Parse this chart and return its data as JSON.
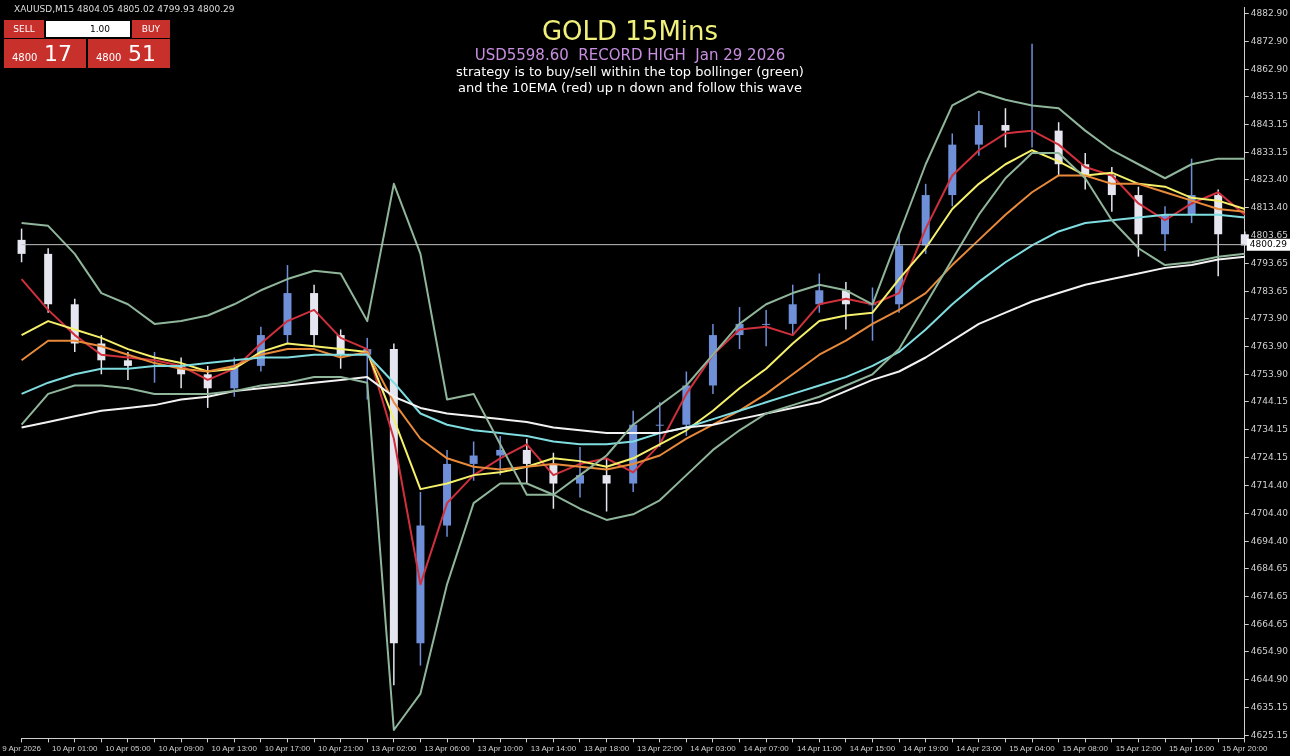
{
  "chart_data": {
    "type": "candlestick",
    "title": "GOLD 15Mins",
    "subtitle": "USD5598.60  RECORD HIGH  Jan 29 2026",
    "annotations": [
      "XAUUSD,M15 4804.05 4805.02 4799.93 4800.29",
      "strategy is to buy/sell within the top bollinger (green)",
      "and the 10EMA (red) up n down and follow this wave",
      "SELL",
      "1.00",
      "BUY",
      "4800",
      "17",
      "4800",
      "51"
    ],
    "categories": [
      "9 Apr 2026",
      null,
      "10 Apr 01:00",
      null,
      "10 Apr 05:00",
      null,
      "10 Apr 09:00",
      null,
      "10 Apr 13:00",
      null,
      "10 Apr 17:00",
      null,
      "10 Apr 21:00",
      null,
      "13 Apr 02:00",
      null,
      "13 Apr 06:00",
      null,
      "13 Apr 10:00",
      null,
      "13 Apr 14:00",
      null,
      "13 Apr 18:00",
      null,
      "13 Apr 22:00",
      null,
      "14 Apr 03:00",
      null,
      "14 Apr 07:00",
      null,
      "14 Apr 11:00",
      null,
      "14 Apr 15:00",
      null,
      "14 Apr 19:00",
      null,
      "14 Apr 23:00",
      null,
      "15 Apr 04:00",
      null,
      "15 Apr 08:00",
      null,
      "15 Apr 12:00",
      null,
      "15 Apr 16:00",
      null,
      "15 Apr 20:00"
    ],
    "ohlc": [
      [
        4802,
        4806,
        4794,
        4797
      ],
      [
        4797,
        4799,
        4776,
        4779
      ],
      [
        4779,
        4781,
        4762,
        4765
      ],
      [
        4765,
        4768,
        4754,
        4759
      ],
      [
        4759,
        4762,
        4752,
        4757
      ],
      [
        4757,
        4762,
        4751,
        4757
      ],
      [
        4757,
        4760,
        4749,
        4754
      ],
      [
        4754,
        4757,
        4742,
        4749
      ],
      [
        4749,
        4760,
        4746,
        4757
      ],
      [
        4757,
        4771,
        4755,
        4768
      ],
      [
        4768,
        4793,
        4765,
        4783
      ],
      [
        4783,
        4786,
        4764,
        4768
      ],
      [
        4768,
        4770,
        4756,
        4761
      ],
      [
        4761,
        4767,
        4745,
        4763
      ],
      [
        4763,
        4765,
        4643,
        4658
      ],
      [
        4658,
        4712,
        4650,
        4700
      ],
      [
        4700,
        4727,
        4696,
        4722
      ],
      [
        4722,
        4730,
        4716,
        4725
      ],
      [
        4725,
        4732,
        4718,
        4727
      ],
      [
        4727,
        4731,
        4715,
        4722
      ],
      [
        4722,
        4726,
        4706,
        4715
      ],
      [
        4715,
        4728,
        4710,
        4718
      ],
      [
        4718,
        4724,
        4705,
        4715
      ],
      [
        4715,
        4741,
        4712,
        4736
      ],
      [
        4736,
        4744,
        4728,
        4736
      ],
      [
        4736,
        4755,
        4732,
        4750
      ],
      [
        4750,
        4772,
        4747,
        4768
      ],
      [
        4768,
        4778,
        4763,
        4772
      ],
      [
        4772,
        4777,
        4764,
        4772
      ],
      [
        4772,
        4786,
        4768,
        4779
      ],
      [
        4779,
        4790,
        4776,
        4784
      ],
      [
        4784,
        4787,
        4770,
        4779
      ],
      [
        4779,
        4785,
        4766,
        4779
      ],
      [
        4779,
        4804,
        4776,
        4800
      ],
      [
        4800,
        4822,
        4797,
        4818
      ],
      [
        4818,
        4840,
        4814,
        4836
      ],
      [
        4836,
        4848,
        4832,
        4843
      ],
      [
        4843,
        4849,
        4835,
        4841
      ],
      [
        4841,
        4872,
        4835,
        4841
      ],
      [
        4841,
        4844,
        4825,
        4829
      ],
      [
        4829,
        4833,
        4820,
        4825
      ],
      [
        4825,
        4828,
        4812,
        4818
      ],
      [
        4818,
        4821,
        4796,
        4804
      ],
      [
        4804,
        4814,
        4798,
        4811
      ],
      [
        4811,
        4831,
        4808,
        4818
      ],
      [
        4818,
        4820,
        4789,
        4804
      ],
      [
        4804,
        4805,
        4800,
        4800
      ]
    ],
    "colors": [
      "#e6e6f0",
      "#e6e6f0",
      "#e6e6f0",
      "#e6e6f0",
      "#e6e6f0",
      "#6f8fd8",
      "#e6e6f0",
      "#e6e6f0",
      "#6f8fd8",
      "#6f8fd8",
      "#6f8fd8",
      "#e6e6f0",
      "#e6e6f0",
      "#6f8fd8",
      "#e6e6f0",
      "#6f8fd8",
      "#6f8fd8",
      "#6f8fd8",
      "#6f8fd8",
      "#e6e6f0",
      "#e6e6f0",
      "#6f8fd8",
      "#e6e6f0",
      "#6f8fd8",
      "#6f8fd8",
      "#6f8fd8",
      "#6f8fd8",
      "#6f8fd8",
      "#6f8fd8",
      "#6f8fd8",
      "#6f8fd8",
      "#e6e6f0",
      "#6f8fd8",
      "#6f8fd8",
      "#6f8fd8",
      "#6f8fd8",
      "#6f8fd8",
      "#e6e6f0",
      "#6f8fd8",
      "#e6e6f0",
      "#e6e6f0",
      "#e6e6f0",
      "#e6e6f0",
      "#6f8fd8",
      "#6f8fd8",
      "#e6e6f0",
      "#e6e6f0"
    ],
    "series": [
      {
        "type": "line",
        "color": "#8fb59a",
        "values": [
          4808,
          4807,
          4797,
          4783,
          4779,
          4772,
          4773,
          4775,
          4779,
          4784,
          4788,
          4791,
          4790,
          4773,
          4822,
          4797,
          4745,
          4747,
          4729,
          4711,
          4711,
          4718,
          4725,
          4736,
          4743,
          4750,
          4761,
          4772,
          4779,
          4783,
          4786,
          4784,
          4779,
          4804,
          4829,
          4850,
          4855,
          4852,
          4850,
          4849,
          4841,
          4834,
          4829,
          4824,
          4829,
          4831,
          4831
        ]
      },
      {
        "type": "line",
        "color": "#8fb59a",
        "values": [
          4736,
          4747,
          4750,
          4750,
          4749,
          4747,
          4747,
          4747,
          4748,
          4750,
          4751,
          4753,
          4753,
          4751,
          4627,
          4640,
          4679,
          4708,
          4715,
          4715,
          4711,
          4706,
          4702,
          4704,
          4709,
          4718,
          4727,
          4734,
          4740,
          4743,
          4746,
          4750,
          4754,
          4763,
          4779,
          4795,
          4811,
          4824,
          4833,
          4833,
          4824,
          4809,
          4799,
          4793,
          4794,
          4796,
          4797
        ]
      },
      {
        "type": "line",
        "color": "#f2f2f2",
        "values": [
          4735,
          4737,
          4739,
          4741,
          4742,
          4743,
          4745,
          4746,
          4748,
          4749,
          4750,
          4751,
          4752,
          4753,
          4746,
          4742,
          4740,
          4739,
          4738,
          4737,
          4735,
          4734,
          4733,
          4733,
          4733,
          4735,
          4736,
          4738,
          4740,
          4742,
          4744,
          4748,
          4752,
          4755,
          4760,
          4766,
          4772,
          4776,
          4780,
          4783,
          4786,
          4788,
          4790,
          4792,
          4793,
          4795,
          4796
        ]
      },
      {
        "type": "line",
        "color": "#7fdde0",
        "values": [
          4747,
          4751,
          4754,
          4756,
          4756,
          4757,
          4757,
          4758,
          4759,
          4760,
          4760,
          4761,
          4761,
          4761,
          4751,
          4740,
          4736,
          4734,
          4733,
          4732,
          4730,
          4729,
          4729,
          4730,
          4733,
          4735,
          4738,
          4741,
          4744,
          4747,
          4750,
          4753,
          4757,
          4762,
          4770,
          4779,
          4787,
          4794,
          4800,
          4805,
          4808,
          4809,
          4810,
          4811,
          4811,
          4811,
          4810
        ]
      },
      {
        "type": "line",
        "color": "#e88a3a",
        "values": [
          4759,
          4766,
          4766,
          4764,
          4761,
          4758,
          4756,
          4755,
          4757,
          4761,
          4763,
          4763,
          4760,
          4762,
          4744,
          4731,
          4724,
          4721,
          4720,
          4721,
          4722,
          4721,
          4720,
          4722,
          4725,
          4731,
          4736,
          4741,
          4747,
          4754,
          4761,
          4766,
          4772,
          4777,
          4783,
          4793,
          4802,
          4811,
          4819,
          4825,
          4825,
          4822,
          4822,
          4819,
          4816,
          4813,
          4812
        ]
      },
      {
        "type": "line",
        "color": "#f5f06a",
        "values": [
          4768,
          4773,
          4770,
          4767,
          4763,
          4760,
          4758,
          4755,
          4756,
          4762,
          4765,
          4764,
          4763,
          4762,
          4738,
          4713,
          4715,
          4718,
          4719,
          4721,
          4724,
          4723,
          4721,
          4724,
          4729,
          4734,
          4741,
          4749,
          4756,
          4765,
          4773,
          4775,
          4776,
          4788,
          4799,
          4813,
          4822,
          4829,
          4834,
          4830,
          4825,
          4826,
          4822,
          4821,
          4817,
          4816,
          4813
        ]
      },
      {
        "type": "line",
        "color": "#d0303c",
        "values": [
          4788,
          4777,
          4768,
          4761,
          4760,
          4759,
          4757,
          4752,
          4756,
          4765,
          4773,
          4777,
          4767,
          4763,
          4731,
          4679,
          4708,
          4718,
          4724,
          4729,
          4718,
          4722,
          4724,
          4719,
          4729,
          4747,
          4761,
          4770,
          4771,
          4768,
          4779,
          4781,
          4779,
          4783,
          4806,
          4825,
          4834,
          4840,
          4841,
          4836,
          4828,
          4825,
          4815,
          4809,
          4815,
          4819,
          4811
        ]
      }
    ],
    "ylim": [
      4624,
      4885
    ],
    "yticks": [
      {
        "value": 4882.9,
        "label": "4882.90"
      },
      {
        "value": 4872.9,
        "label": "4872.90"
      },
      {
        "value": 4862.9,
        "label": "4862.90"
      },
      4853.15,
      4843.15,
      4833.15,
      {
        "value": 4823.4,
        "label": "4823.40"
      },
      {
        "value": 4813.4,
        "label": "4813.40"
      },
      4803.65,
      4793.65,
      4783.65,
      {
        "value": 4773.9,
        "label": "4773.90"
      },
      {
        "value": 4763.9,
        "label": "4763.90"
      },
      {
        "value": 4753.9,
        "label": "4753.90"
      },
      4744.15,
      4734.15,
      4724.15,
      {
        "value": 4714.4,
        "label": "4714.40"
      },
      {
        "value": 4704.4,
        "label": "4704.40"
      },
      {
        "value": 4694.4,
        "label": "4694.40"
      },
      4684.65,
      4674.65,
      4664.65,
      {
        "value": 4654.9,
        "label": "4654.90"
      },
      {
        "value": 4644.9,
        "label": "4644.90"
      },
      4635.15,
      4625.15
    ],
    "ref_lines": [
      {
        "axis": "y",
        "value": 4800.29,
        "label": "4800.29",
        "color": "#bfbfbf"
      }
    ]
  }
}
